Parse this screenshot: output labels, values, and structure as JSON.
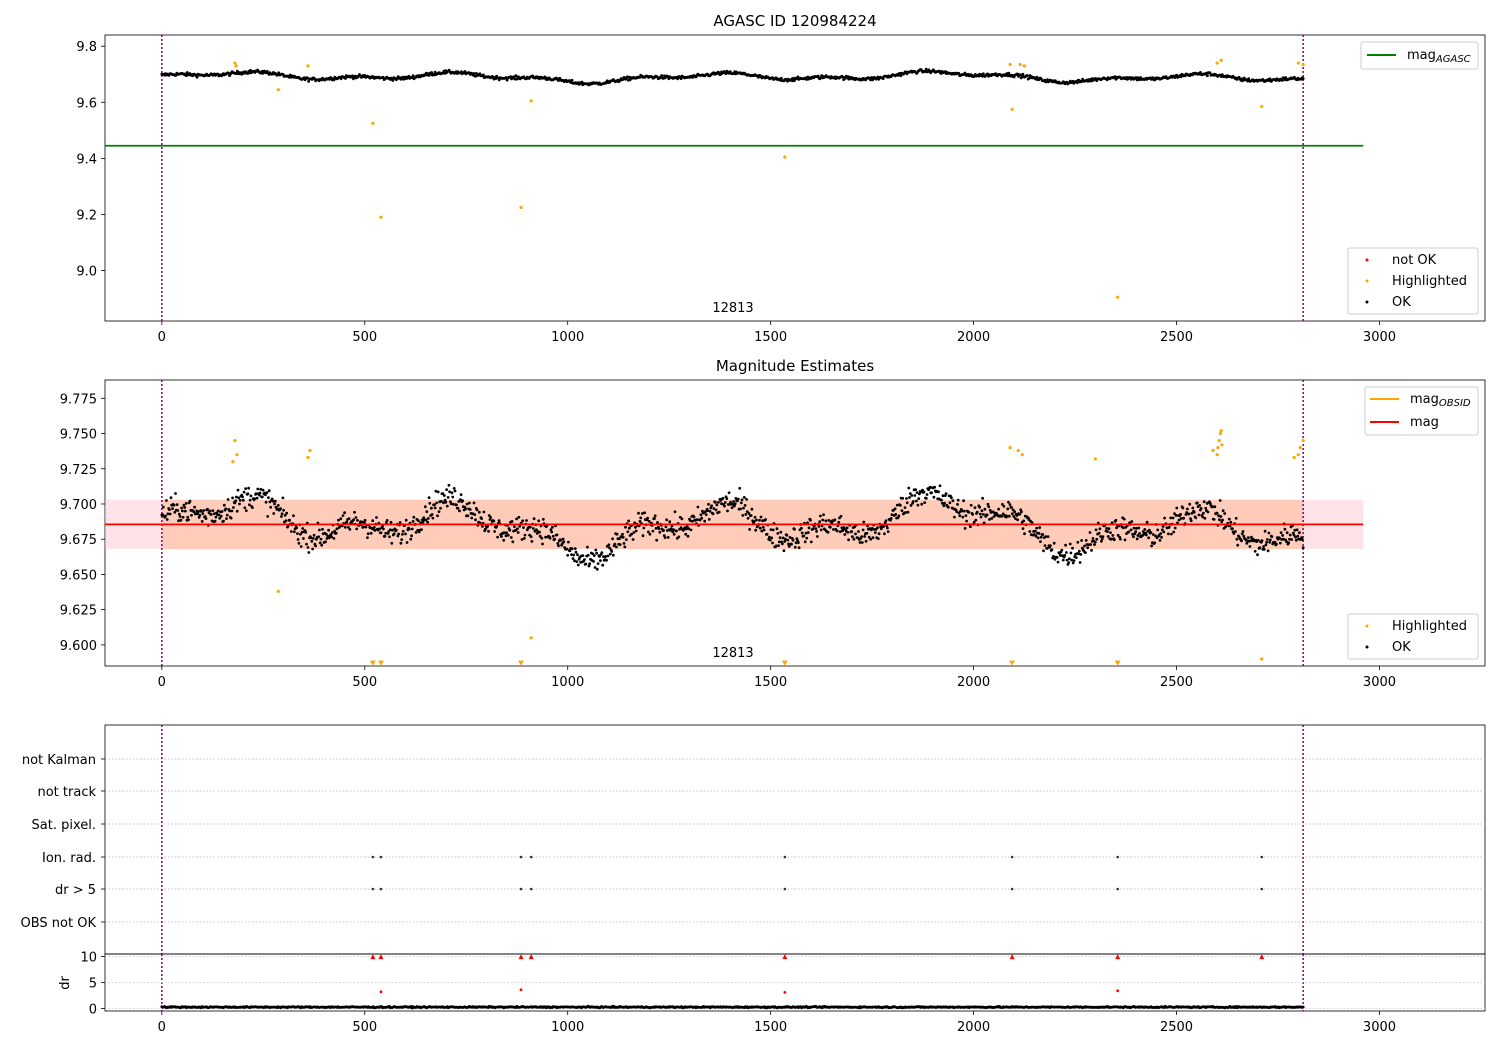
{
  "chart_data": [
    {
      "type": "scatter",
      "title": "AGASC ID 120984224",
      "xlim": [
        -140,
        3260
      ],
      "ylim": [
        8.82,
        9.84
      ],
      "xticks": [
        0,
        500,
        1000,
        1500,
        2000,
        2500,
        3000
      ],
      "yticks": [
        9.0,
        9.2,
        9.4,
        9.6,
        9.8
      ],
      "ytick_labels": [
        "9.0",
        "9.2",
        "9.4",
        "9.6",
        "9.8"
      ],
      "annotation": "12813",
      "annotation_x": 1410,
      "vlines": [
        0,
        2812
      ],
      "hline": {
        "y": 9.445,
        "x0": -140,
        "x1": 2960,
        "color": "#008000"
      },
      "legend_top": [
        {
          "label": "mag",
          "sub": "AGASC",
          "color": "#008000"
        }
      ],
      "legend_bottom": [
        {
          "label": "not OK",
          "color": "#ff0000"
        },
        {
          "label": "Highlighted",
          "color": "#ffa500"
        },
        {
          "label": "OK",
          "color": "#000000"
        }
      ],
      "series": [
        {
          "name": "Highlighted",
          "color": "#ffa500",
          "x": [
            180,
            183,
            287,
            360,
            520,
            540,
            885,
            910,
            1535,
            2090,
            2095,
            2115,
            2125,
            2355,
            2600,
            2610,
            2710,
            2800,
            2812
          ],
          "y": [
            9.74,
            9.73,
            9.645,
            9.73,
            9.525,
            9.19,
            9.225,
            9.605,
            9.405,
            9.735,
            9.575,
            9.735,
            9.73,
            8.905,
            9.74,
            9.75,
            9.585,
            9.74,
            9.735
          ]
        }
      ],
      "ok_series": {
        "name": "OK",
        "color": "#000000",
        "center": 9.69,
        "amplitude": 0.02
      }
    },
    {
      "type": "scatter",
      "title": "Magnitude Estimates",
      "xlim": [
        -140,
        3260
      ],
      "ylim": [
        9.585,
        9.788
      ],
      "xticks": [
        0,
        500,
        1000,
        1500,
        2000,
        2500,
        3000
      ],
      "yticks": [
        9.6,
        9.625,
        9.65,
        9.675,
        9.7,
        9.725,
        9.75,
        9.775
      ],
      "ytick_labels": [
        "9.600",
        "9.625",
        "9.650",
        "9.675",
        "9.700",
        "9.725",
        "9.750",
        "9.775"
      ],
      "annotation": "12813",
      "annotation_x": 1410,
      "vlines": [
        0,
        2812
      ],
      "mean": 9.6855,
      "band_outer": [
        9.668,
        9.703
      ],
      "band_inner": [
        9.668,
        9.703
      ],
      "hline": {
        "y": 9.6855,
        "x0": -140,
        "x1": 2960,
        "color": "#ff0000"
      },
      "legend_top": [
        {
          "label": "mag",
          "sub": "OBSID",
          "color": "#ffa500"
        },
        {
          "label": "mag",
          "sub": "",
          "color": "#ff0000"
        }
      ],
      "legend_bottom": [
        {
          "label": "Highlighted",
          "color": "#ffa500"
        },
        {
          "label": "OK",
          "color": "#000000"
        }
      ],
      "series": [
        {
          "name": "Highlighted",
          "color": "#ffa500",
          "x": [
            175,
            180,
            185,
            287,
            360,
            365,
            910,
            2090,
            2110,
            2120,
            2300,
            2590,
            2600,
            2602,
            2605,
            2608,
            2610,
            2612,
            2710,
            2790,
            2800,
            2805,
            2812
          ],
          "y": [
            9.73,
            9.745,
            9.735,
            9.638,
            9.733,
            9.738,
            9.605,
            9.74,
            9.738,
            9.735,
            9.732,
            9.738,
            9.735,
            9.74,
            9.745,
            9.75,
            9.752,
            9.742,
            9.59,
            9.733,
            9.735,
            9.74,
            9.745
          ]
        },
        {
          "name": "Highlighted-offscale",
          "color": "#ffa500",
          "x": [
            520,
            540,
            885,
            1535,
            2095,
            2355
          ],
          "y": [
            9.587,
            9.587,
            9.587,
            9.587,
            9.587,
            9.587
          ]
        }
      ],
      "ok_series": {
        "name": "OK",
        "color": "#000000",
        "center": 9.685,
        "amplitude": 0.022
      }
    },
    {
      "type": "scatter",
      "title": "",
      "xlim": [
        -140,
        3260
      ],
      "xticks": [
        0,
        500,
        1000,
        1500,
        2000,
        2500,
        3000
      ],
      "categories": [
        "not Kalman",
        "not track",
        "Sat. pixel.",
        "Ion. rad.",
        "dr > 5",
        "OBS not OK"
      ],
      "vlines": [
        0,
        2812
      ],
      "flag_points": {
        "Ion. rad.": [
          520,
          540,
          885,
          910,
          1535,
          2095,
          2355,
          2710
        ],
        "dr > 5": [
          520,
          540,
          885,
          910,
          1535,
          2095,
          2355,
          2710
        ]
      }
    },
    {
      "type": "scatter",
      "title": "",
      "ylabel": "dr",
      "xlim": [
        -140,
        3260
      ],
      "ylim": [
        -0.5,
        10.5
      ],
      "xticks": [
        0,
        500,
        1000,
        1500,
        2000,
        2500,
        3000
      ],
      "yticks": [
        0,
        5,
        10
      ],
      "ytick_labels": [
        "0",
        "5",
        "10"
      ],
      "vlines": [
        0,
        2812
      ],
      "notok_x": [
        520,
        540,
        885,
        910,
        1535,
        2095,
        2355,
        2710
      ],
      "notok_y": [
        10,
        10,
        10,
        10,
        10,
        10,
        10,
        10
      ],
      "red_dots_x": [
        540,
        885,
        1535,
        2355
      ],
      "red_dots_y": [
        3.2,
        3.6,
        3.1,
        3.4
      ],
      "ok_series": {
        "name": "OK",
        "color": "#000000",
        "center": 0.25,
        "amplitude": 0.2
      }
    }
  ]
}
